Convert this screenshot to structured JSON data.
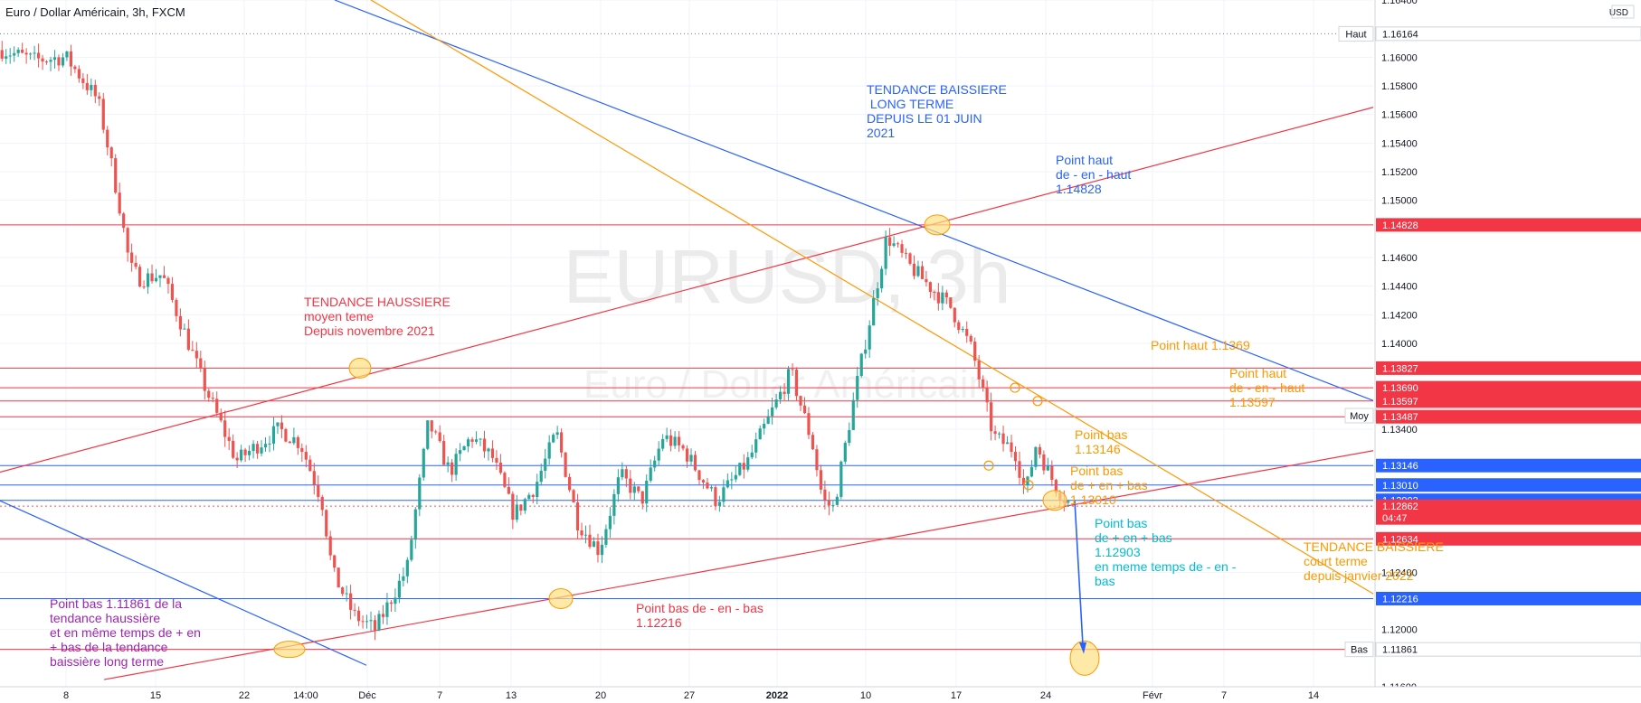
{
  "header": {
    "symbol_title": "Euro / Dollar Américain, 3h, FXCM"
  },
  "watermark": {
    "ticker": "EURUSD, 3h",
    "name": "Euro / Dollar Américain"
  },
  "colors": {
    "red_line": "#f23645",
    "blue_line": "#2962ff",
    "orange_line": "#ff9800",
    "up_candle": "#26a69a",
    "down_candle": "#ef5350",
    "purple_text": "#9c27b0",
    "teal_text": "#00bcd4",
    "circle_fill": "#ffe082"
  },
  "chart_data": {
    "type": "candlestick",
    "instrument": "EURUSD",
    "timeframe": "3h",
    "axis_currency": "USD",
    "ylim": [
      1.116,
      1.164
    ],
    "y_ticks": [
      "1.16400",
      "1.16000",
      "1.15800",
      "1.15600",
      "1.15400",
      "1.15200",
      "1.15000",
      "1.14600",
      "1.14400",
      "1.14200",
      "1.14000",
      "1.13400",
      "1.12400",
      "1.12000",
      "1.11600"
    ],
    "x_ticks": [
      "8",
      "15",
      "22",
      "14:00",
      "Déc",
      "7",
      "13",
      "20",
      "27",
      "2022",
      "10",
      "17",
      "24",
      "Févr",
      "7",
      "14"
    ],
    "price_badges": [
      {
        "label": "Haut",
        "value": "1.16164",
        "style": "plain"
      },
      {
        "label": "",
        "value": "1.14828",
        "style": "red"
      },
      {
        "label": "",
        "value": "1.13827",
        "style": "red"
      },
      {
        "label": "",
        "value": "1.13690",
        "style": "red"
      },
      {
        "label": "",
        "value": "1.13597",
        "style": "red"
      },
      {
        "label": "Moy",
        "value": "1.13495",
        "style": "plain"
      },
      {
        "label": "",
        "value": "1.13487",
        "style": "red"
      },
      {
        "label": "",
        "value": "1.13146",
        "style": "blue"
      },
      {
        "label": "",
        "value": "1.13010",
        "style": "blue"
      },
      {
        "label": "",
        "value": "1.12903",
        "style": "blue"
      },
      {
        "label": "",
        "value": "1.12862",
        "style": "current",
        "countdown": "04:47"
      },
      {
        "label": "",
        "value": "1.12634",
        "style": "red"
      },
      {
        "label": "",
        "value": "1.12216",
        "style": "blue"
      },
      {
        "label": "",
        "value": "1.11861",
        "style": "red"
      },
      {
        "label": "Bas",
        "value": "1.11861",
        "style": "plain"
      }
    ],
    "annotations": [
      {
        "text": "TENDANCE BAISSIERE\n LONG TERME\nDEPUIS LE 01 JUIN\n2021",
        "color": "blue"
      },
      {
        "text": "Point haut\nde - en - haut\n1.14828",
        "color": "blue"
      },
      {
        "text": "TENDANCE HAUSSIERE\nmoyen teme\nDepuis novembre 2021",
        "color": "red"
      },
      {
        "text": "Point haut 1.1369",
        "color": "orange"
      },
      {
        "text": "Point haut\nde - en - haut\n1.13597",
        "color": "orange"
      },
      {
        "text": "Point bas\n1.13146",
        "color": "orange"
      },
      {
        "text": "Point bas\nde + en + bas\n1.13010",
        "color": "orange"
      },
      {
        "text": "Point bas\nde + en + bas\n1.12903\nen meme temps de - en -\nbas",
        "color": "teal"
      },
      {
        "text": "TENDANCE BAISSIERE\ncourt terme\ndepuis janvier 2022",
        "color": "orange"
      },
      {
        "text": "Point bas de - en - bas\n1.12216",
        "color": "red"
      },
      {
        "text": "Point bas 1.11861 de la\ntendance haussière\net en même temps de + en\n+ bas de la tendance\nbaissière long terme",
        "color": "purple"
      }
    ],
    "path_x": [
      0,
      3,
      6,
      9,
      10,
      11,
      12,
      13,
      15,
      17,
      19,
      22,
      26,
      28,
      30,
      31,
      33,
      35,
      38,
      40,
      42,
      44,
      46,
      48,
      50,
      52,
      54,
      56,
      58,
      60,
      62,
      64,
      67,
      70,
      74,
      76,
      77,
      78,
      80,
      83,
      85,
      87,
      89,
      91,
      93,
      95,
      96,
      97,
      98,
      99,
      100
    ],
    "path_close": [
      1.1605,
      1.1598,
      1.16,
      1.157,
      1.1535,
      1.1497,
      1.1453,
      1.1445,
      1.1448,
      1.141,
      1.137,
      1.1318,
      1.134,
      1.133,
      1.129,
      1.124,
      1.121,
      1.12,
      1.1243,
      1.1345,
      1.131,
      1.1335,
      1.132,
      1.128,
      1.13,
      1.1338,
      1.1275,
      1.1255,
      1.1308,
      1.129,
      1.1335,
      1.1325,
      1.129,
      1.1318,
      1.138,
      1.133,
      1.129,
      1.1285,
      1.1365,
      1.1475,
      1.1455,
      1.144,
      1.1425,
      1.1395,
      1.1335,
      1.1325,
      1.1295,
      1.133,
      1.1312,
      1.1298,
      1.1289
    ]
  }
}
